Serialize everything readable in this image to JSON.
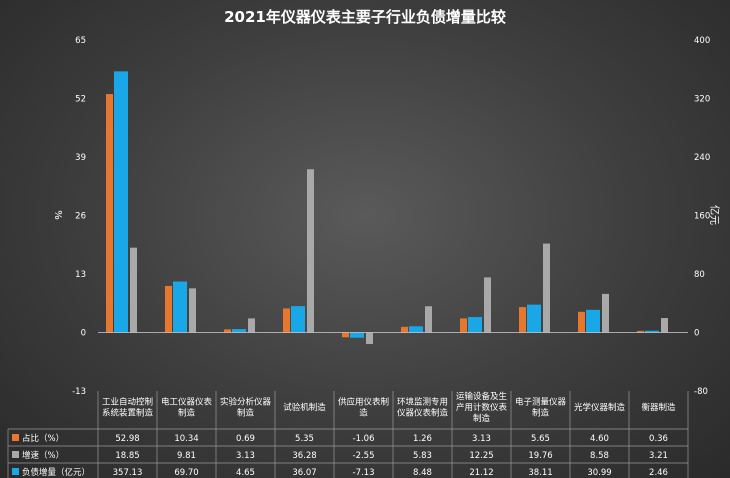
{
  "chart_data": {
    "type": "bar",
    "title": "2021年仪器仪表主要子行业负债增量比较",
    "ylabel_left": "%",
    "ylabel_right": "亿元",
    "ylim_left": [
      -13,
      65
    ],
    "ylim_right": [
      -80,
      400
    ],
    "yticks_left": [
      "65",
      "52",
      "39",
      "26",
      "13",
      "0",
      "-13"
    ],
    "yticks_right": [
      "400",
      "320",
      "240",
      "160",
      "80",
      "0",
      "-80"
    ],
    "yticks_left_values": [
      65,
      52,
      39,
      26,
      13,
      0,
      -13
    ],
    "yticks_right_values": [
      400,
      320,
      240,
      160,
      80,
      0,
      -80
    ],
    "grid": false,
    "legend": "table-bottom",
    "categories": [
      [
        "工业自动控制",
        "系统装置制造"
      ],
      [
        "电工仪器仪表",
        "制造"
      ],
      [
        "实验分析仪器",
        "制造"
      ],
      [
        "试验机制造"
      ],
      [
        "供应用仪表制",
        "造"
      ],
      [
        "环境监测专用",
        "仪器仪表制造"
      ],
      [
        "运输设备及生",
        "产用计数仪表",
        "制造"
      ],
      [
        "电子测量仪器",
        "制造"
      ],
      [
        "光学仪器制造"
      ],
      [
        "衡器制造"
      ]
    ],
    "series": [
      {
        "name": "占比（%）",
        "axis": "left",
        "color": "#e8772e",
        "values": [
          52.98,
          10.34,
          0.69,
          5.35,
          -1.06,
          1.26,
          3.13,
          5.65,
          4.6,
          0.36
        ],
        "labels": [
          "52.98",
          "10.34",
          "0.69",
          "5.35",
          "-1.06",
          "1.26",
          "3.13",
          "5.65",
          "4.60",
          "0.36"
        ]
      },
      {
        "name": "负债增量（亿元）",
        "axis": "right",
        "color": "#1aa7e8",
        "values": [
          357.13,
          69.7,
          4.65,
          36.07,
          -7.13,
          8.48,
          21.12,
          38.11,
          30.99,
          2.46
        ],
        "labels": [
          "357.13",
          "69.70",
          "4.65",
          "36.07",
          "-7.13",
          "8.48",
          "21.12",
          "38.11",
          "30.99",
          "2.46"
        ]
      },
      {
        "name": "增速（%）",
        "axis": "left",
        "color": "#a9a9a9",
        "values": [
          18.85,
          9.81,
          3.13,
          36.28,
          -2.55,
          5.83,
          12.25,
          19.76,
          8.58,
          3.21
        ],
        "labels": [
          "18.85",
          "9.81",
          "3.13",
          "36.28",
          "-2.55",
          "5.83",
          "12.25",
          "19.76",
          "8.58",
          "3.21"
        ]
      }
    ],
    "table_rows": [
      {
        "series_index": 0,
        "label": "占比（%）"
      },
      {
        "series_index": 2,
        "label": "增速（%）"
      },
      {
        "series_index": 1,
        "label": "负债增量（亿元）"
      }
    ]
  }
}
